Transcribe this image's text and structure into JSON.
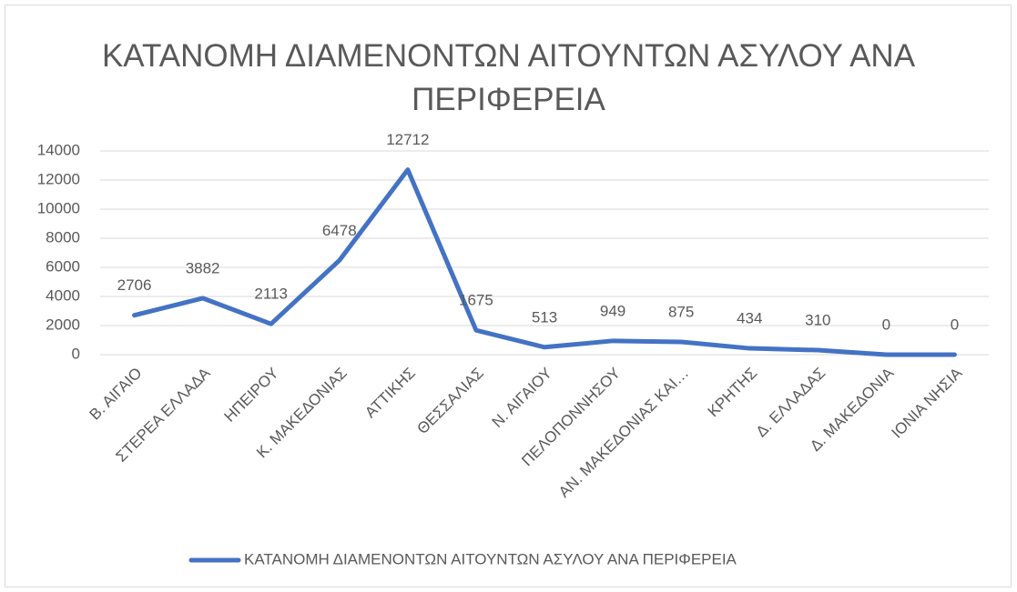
{
  "chart_data": {
    "type": "line",
    "title": "ΚΑΤΑΝΟΜΗ ΔΙΑΜΕΝΟΝΤΩΝ ΑΙΤΟΥΝΤΩΝ ΑΣΥΛΟΥ ΑΝΑ ΠΕΡΙΦΕΡΕΙΑ",
    "categories": [
      "Β. ΑΙΓΑΙΟ",
      "ΣΤΕΡΕΑ ΕΛΛΑΔΑ",
      "ΗΠΕΙΡΟΥ",
      "Κ. ΜΑΚΕΔΟΝΙΑΣ",
      "ΑΤΤΙΚΗΣ",
      "ΘΕΣΣΑΛΙΑΣ",
      "Ν. ΑΙΓΑΙΟΥ",
      "ΠΕΛΟΠΟΝΝΗΣΟΥ",
      "ΑΝ. ΜΑΚΕΔΟΝΙΑΣ ΚΑΙ…",
      "ΚΡΗΤΗΣ",
      "Δ. ΕΛΛΑΔΑΣ",
      "Δ. ΜΑΚΕΔΟΝΙΑ",
      "ΙΟΝΙΑ ΝΗΣΙΑ"
    ],
    "series": [
      {
        "name": "ΚΑΤΑΝΟΜΗ ΔΙΑΜΕΝΟΝΤΩΝ ΑΙΤΟΥΝΤΩΝ ΑΣΥΛΟΥ ΑΝΑ ΠΕΡΙΦΕΡΕΙΑ",
        "color": "#4472c4",
        "values": [
          2706,
          3882,
          2113,
          6478,
          12712,
          1675,
          513,
          949,
          875,
          434,
          310,
          0,
          0
        ]
      }
    ],
    "ylim": [
      0,
      14000
    ],
    "yticks": [
      0,
      2000,
      4000,
      6000,
      8000,
      10000,
      12000,
      14000
    ],
    "grid": true,
    "legend": "bottom"
  }
}
